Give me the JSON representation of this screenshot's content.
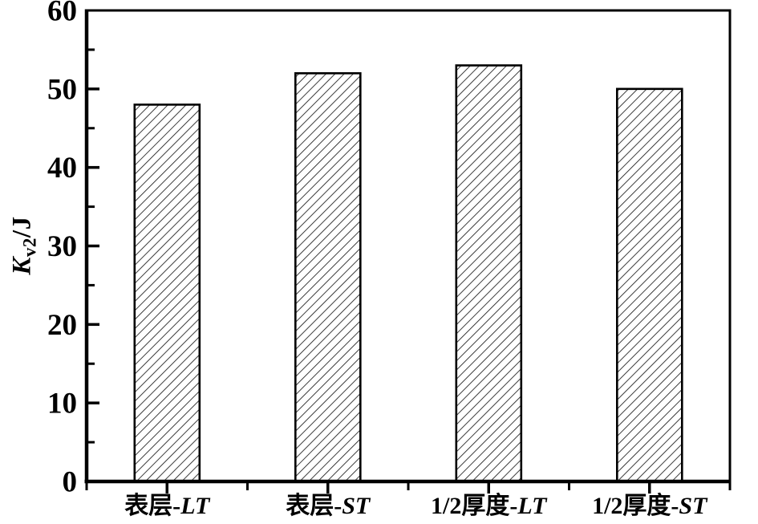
{
  "page": {
    "background": "#ffffff"
  },
  "chart_data": {
    "type": "bar",
    "title": "",
    "categories": [
      {
        "label": "表层-LT",
        "prefix": "表层-",
        "suffix": "LT"
      },
      {
        "label": "表层-ST",
        "prefix": "表层-",
        "suffix": "ST"
      },
      {
        "label": "1/2厚度-LT",
        "prefix": "1/2厚度-",
        "suffix": "LT"
      },
      {
        "label": "1/2厚度-ST",
        "prefix": "1/2厚度-",
        "suffix": "ST"
      }
    ],
    "values": [
      48,
      52,
      53,
      50
    ],
    "xlabel": "",
    "ylabel": {
      "main": "K",
      "sub": "v2",
      "rest": "/J",
      "text": "Kv2/J"
    },
    "ylim": [
      0,
      60
    ],
    "yticks_major": [
      0,
      10,
      20,
      30,
      40,
      50,
      60
    ],
    "yticks_minor": [
      5,
      15,
      25,
      35,
      45,
      55
    ],
    "grid": false,
    "legend": null,
    "style": {
      "bar_fill_pattern": "diagonal-hatch",
      "hatch_color": "#1a1a1a",
      "bar_outline_color": "#000000",
      "axis_color": "#000000",
      "text_color": "#000000",
      "background": "#ffffff"
    }
  }
}
